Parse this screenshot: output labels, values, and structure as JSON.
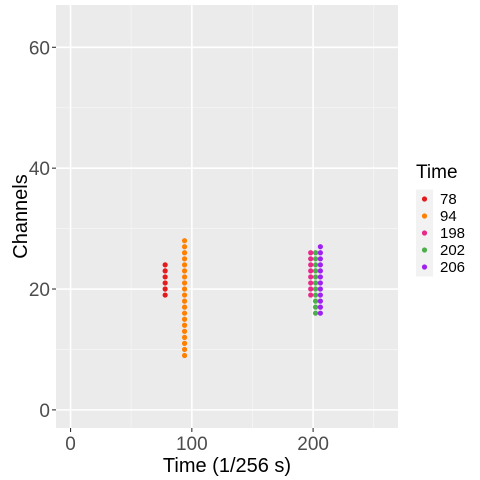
{
  "chart_data": {
    "type": "scatter",
    "xlabel": "Time (1/256 s)",
    "ylabel": "Channels",
    "xlim": [
      -12,
      270
    ],
    "ylim": [
      -3,
      67
    ],
    "x_ticks": [
      0,
      100,
      200
    ],
    "x_tick_labels": [
      "0",
      "100",
      "200"
    ],
    "x_minor_ticks": [
      50,
      150,
      250
    ],
    "y_ticks": [
      0,
      20,
      40,
      60
    ],
    "y_tick_labels": [
      "0",
      "20",
      "40",
      "60"
    ],
    "y_minor_ticks": [
      10,
      30,
      50
    ],
    "grid": true,
    "legend_title": "Time",
    "legend_position": "right",
    "series": [
      {
        "name": "78",
        "color": "#E41A1C",
        "x": 78,
        "y": [
          19,
          20,
          21,
          22,
          23,
          24
        ]
      },
      {
        "name": "94",
        "color": "#FF7F00",
        "x": 94,
        "y": [
          9,
          10,
          11,
          12,
          13,
          14,
          15,
          16,
          17,
          18,
          19,
          20,
          21,
          22,
          23,
          24,
          25,
          26,
          27,
          28
        ]
      },
      {
        "name": "198",
        "color": "#E7298A",
        "x": 198,
        "y": [
          19,
          20,
          21,
          22,
          23,
          24,
          25,
          26
        ]
      },
      {
        "name": "202",
        "color": "#4DAF4A",
        "x": 202,
        "y": [
          16,
          17,
          18,
          19,
          20,
          21,
          22,
          23,
          24,
          25,
          26
        ]
      },
      {
        "name": "206",
        "color": "#A020F0",
        "x": 206,
        "y": [
          16,
          17,
          18,
          19,
          20,
          21,
          22,
          23,
          24,
          25,
          26,
          27
        ]
      }
    ]
  }
}
